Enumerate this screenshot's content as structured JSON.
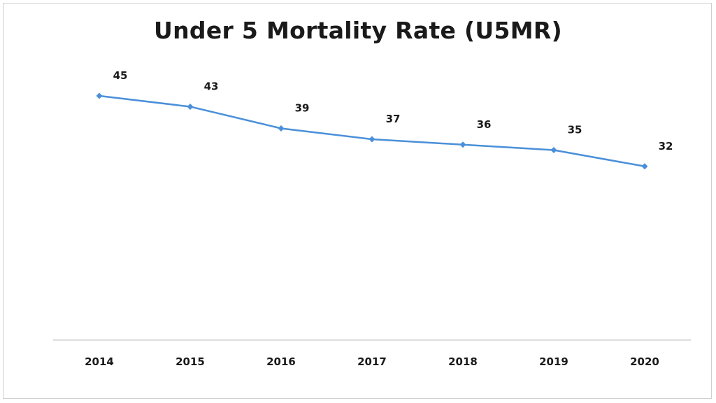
{
  "chart_data": {
    "type": "line",
    "title": "Under 5 Mortality Rate (U5MR)",
    "xlabel": "",
    "ylabel": "",
    "categories": [
      "2014",
      "2015",
      "2016",
      "2017",
      "2018",
      "2019",
      "2020"
    ],
    "series": [
      {
        "values": [
          45,
          43,
          39,
          37,
          36,
          35,
          32
        ],
        "color": "#4a90d9"
      }
    ],
    "ylim": [
      0,
      57.5
    ],
    "grid": false,
    "legend": "none",
    "data_labels": true
  }
}
